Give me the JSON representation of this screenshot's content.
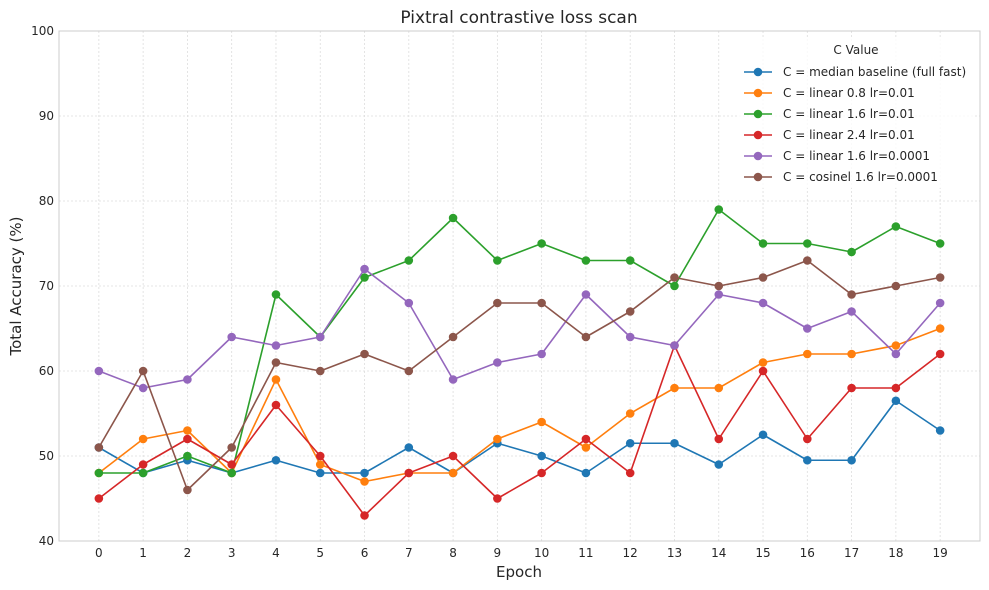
{
  "chart_data": {
    "type": "line",
    "title": "Pixtral contrastive loss scan",
    "xlabel": "Epoch",
    "ylabel": "Total Accuracy (%)",
    "x": [
      0,
      1,
      2,
      3,
      4,
      5,
      6,
      7,
      8,
      9,
      10,
      11,
      12,
      13,
      14,
      15,
      16,
      17,
      18,
      19
    ],
    "xlim": [
      -0.9,
      19.9
    ],
    "ylim": [
      40,
      100
    ],
    "yticks": [
      40,
      50,
      60,
      70,
      80,
      90,
      100
    ],
    "grid": true,
    "legend": {
      "title": "C Value",
      "placement": "top-right"
    },
    "series": [
      {
        "name": "C = median baseline (full fast)",
        "color": "#1f77b4",
        "values": [
          51,
          48,
          49.5,
          48,
          49.5,
          48,
          48,
          51,
          48,
          51.5,
          50,
          48,
          51.5,
          51.5,
          49,
          52.5,
          49.5,
          49.5,
          56.5,
          53
        ]
      },
      {
        "name": "C = linear 0.8 lr=0.01",
        "color": "#ff7f0e",
        "values": [
          48,
          52,
          53,
          48,
          59,
          49,
          47,
          48,
          48,
          52,
          54,
          51,
          55,
          58,
          58,
          61,
          62,
          62,
          63,
          65
        ]
      },
      {
        "name": "C = linear 1.6 lr=0.01",
        "color": "#2ca02c",
        "values": [
          48,
          48,
          50,
          48,
          69,
          64,
          71,
          73,
          78,
          73,
          75,
          73,
          73,
          70,
          79,
          75,
          75,
          74,
          77,
          75
        ]
      },
      {
        "name": "C = linear 2.4 lr=0.01",
        "color": "#d62728",
        "values": [
          45,
          49,
          52,
          49,
          56,
          50,
          43,
          48,
          50,
          45,
          48,
          52,
          48,
          63,
          52,
          60,
          52,
          58,
          58,
          62
        ]
      },
      {
        "name": "C = linear 1.6 lr=0.0001",
        "color": "#9467bd",
        "values": [
          60,
          58,
          59,
          64,
          63,
          64,
          72,
          68,
          59,
          61,
          62,
          69,
          64,
          63,
          69,
          68,
          65,
          67,
          62,
          68
        ]
      },
      {
        "name": "C = cosinel 1.6 lr=0.0001",
        "color": "#8c564b",
        "values": [
          51,
          60,
          46,
          51,
          61,
          60,
          62,
          60,
          64,
          68,
          68,
          64,
          67,
          71,
          70,
          71,
          73,
          69,
          70,
          71
        ]
      }
    ]
  }
}
